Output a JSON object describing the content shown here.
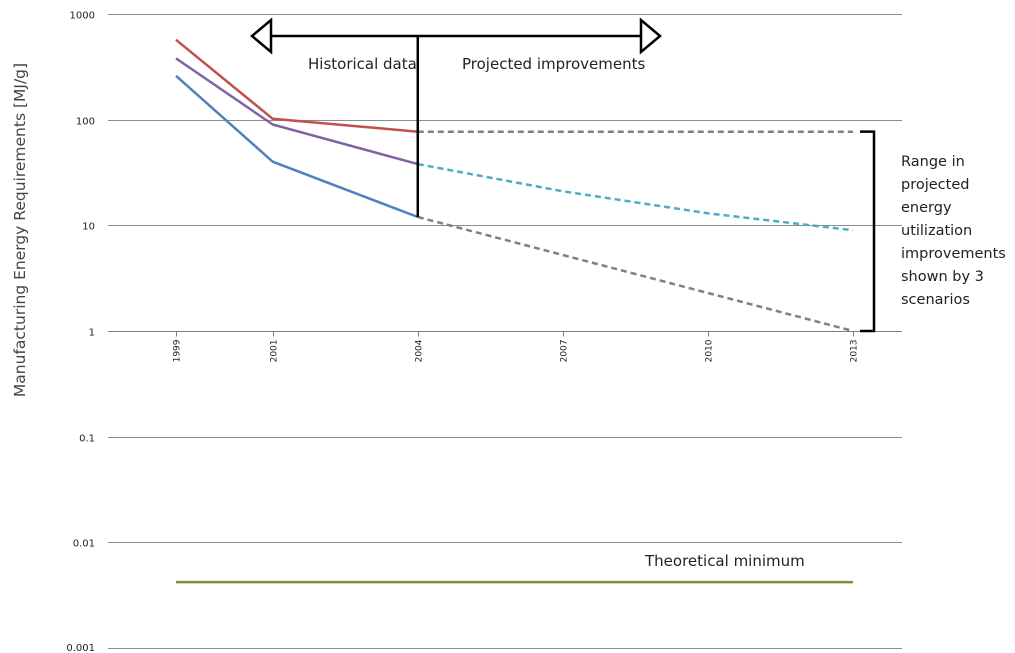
{
  "chart_data": {
    "type": "line",
    "title": "",
    "xlabel": "",
    "ylabel": "Manufacturing Energy Requirements [MJ/g]",
    "y_scale": "log",
    "ylim": [
      0.001,
      1000
    ],
    "y_ticks": [
      "1000",
      "100",
      "10",
      "1",
      "0.1",
      "0.01",
      "0.001"
    ],
    "y_tick_values": [
      1000,
      100,
      10,
      1,
      0.1,
      0.01,
      0.001
    ],
    "x_ticks": [
      "1999",
      "2001",
      "2004",
      "2007",
      "2010",
      "2013"
    ],
    "x_tick_values": [
      1999,
      2001,
      2004,
      2007,
      2010,
      2013
    ],
    "grid": "horizontal",
    "series": [
      {
        "x": [
          1999,
          2001,
          2004
        ],
        "values": [
          570,
          102,
          77
        ],
        "color": "#c0504d",
        "style": "solid"
      },
      {
        "x": [
          1999,
          2001,
          2004
        ],
        "values": [
          380,
          90,
          38
        ],
        "color": "#8064a2",
        "style": "solid"
      },
      {
        "x": [
          1999,
          2001,
          2004
        ],
        "values": [
          260,
          40,
          12
        ],
        "color": "#4f81bd",
        "style": "solid"
      },
      {
        "x": [
          2004,
          2013
        ],
        "values": [
          77,
          77
        ],
        "color": "#808080",
        "style": "dashed"
      },
      {
        "x": [
          2004,
          2007,
          2010,
          2013
        ],
        "values": [
          38,
          21,
          13,
          9
        ],
        "color": "#4bacc6",
        "style": "dashed"
      },
      {
        "x": [
          2004,
          2013
        ],
        "values": [
          12,
          1
        ],
        "color": "#808080",
        "style": "dashed"
      },
      {
        "x": [
          1999,
          2013
        ],
        "values": [
          0.0042,
          0.0042
        ],
        "color": "#77933c",
        "style": "solid"
      }
    ],
    "annotations": {
      "historical": "Historical data",
      "projected": "Projected improvements",
      "minimum": "Theoretical minimum",
      "range_lines": [
        "Range in",
        "projected",
        "energy",
        "utilization",
        "improvements",
        "shown by 3",
        "scenarios"
      ]
    },
    "divider_year": 2004,
    "bracket_range": [
      1,
      77
    ],
    "axis_color": "#7f7f7f",
    "grid_color": "#8c8c8c"
  }
}
